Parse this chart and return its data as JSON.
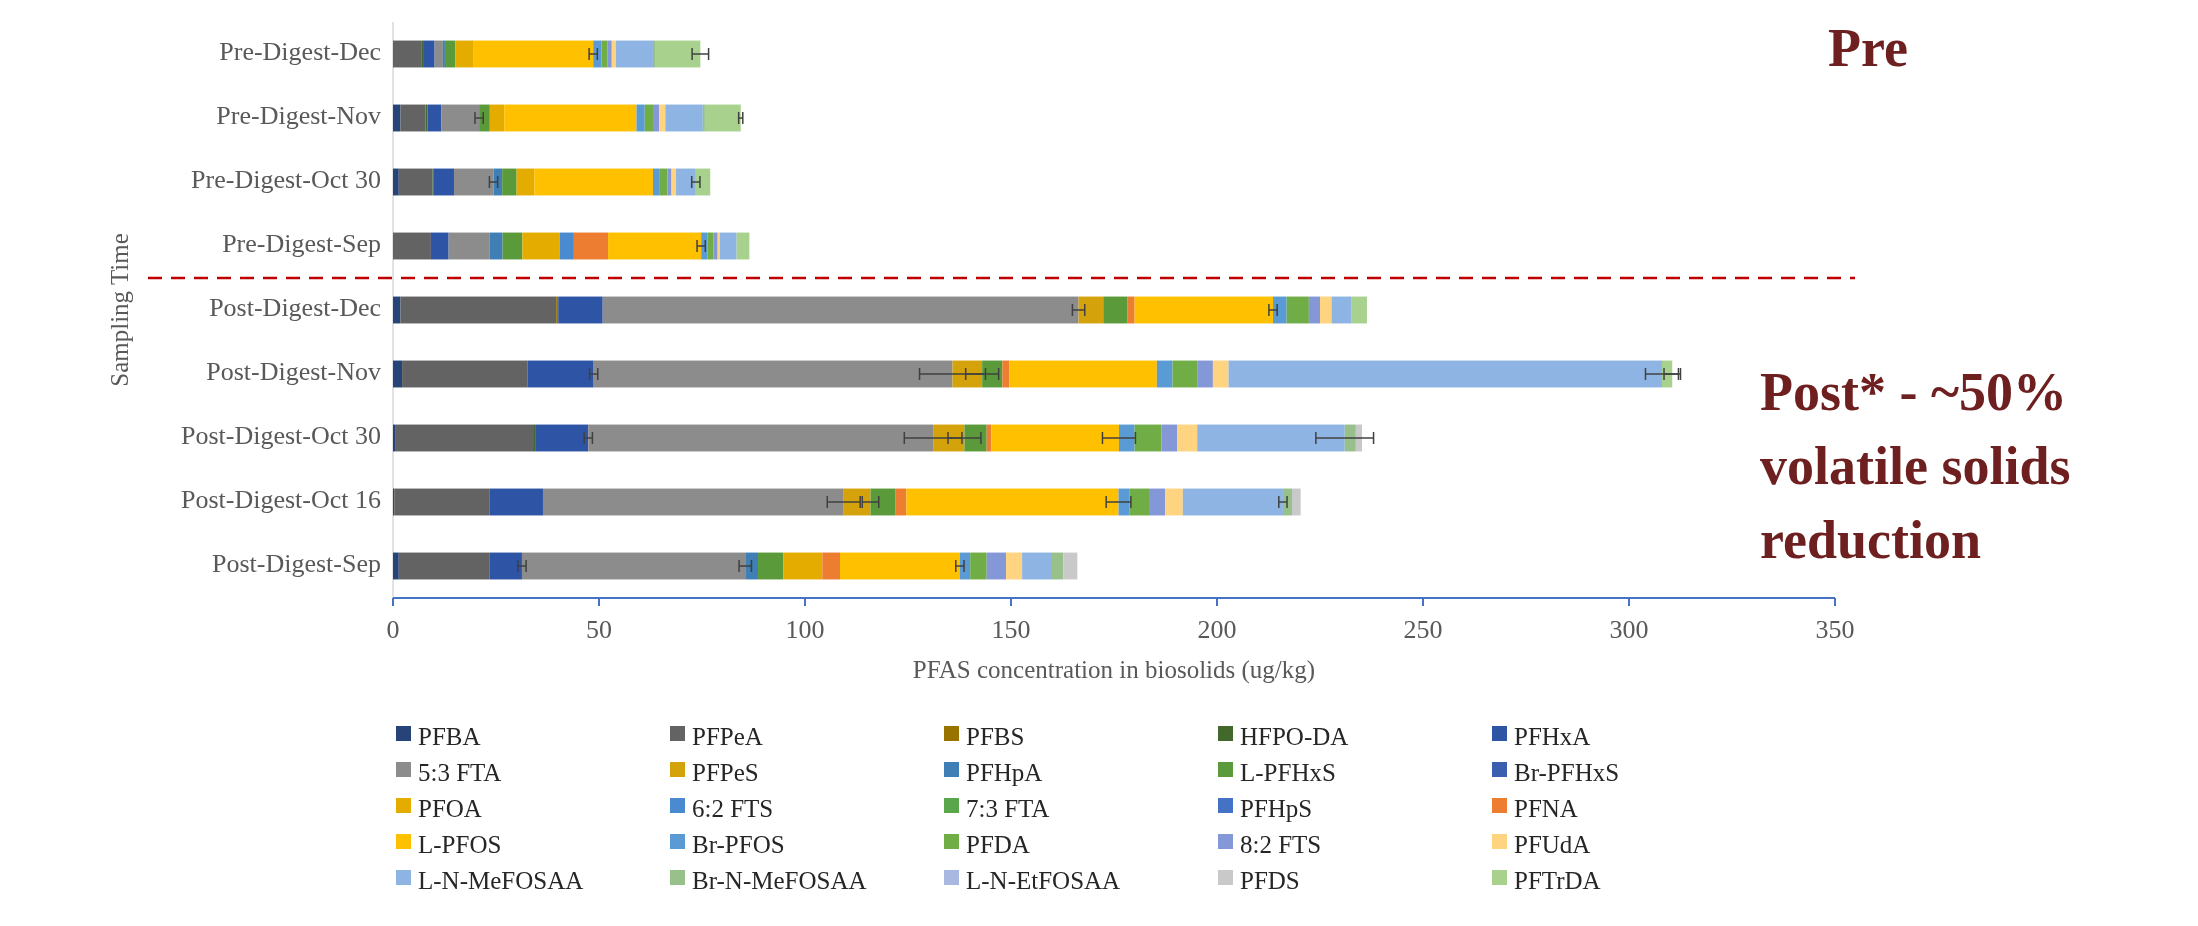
{
  "chart_data": {
    "type": "bar",
    "orientation": "horizontal",
    "stacked": true,
    "xlabel": "PFAS concentration in biosolids (ug/kg)",
    "ylabel": "Sampling Time",
    "categories": [
      "Pre-Digest-Dec",
      "Pre-Digest-Nov",
      "Pre-Digest-Oct 30",
      "Pre-Digest-Sep",
      "Post-Digest-Dec",
      "Post-Digest-Nov",
      "Post-Digest-Oct 30",
      "Post-Digest-Oct 16",
      "Post-Digest-Sep"
    ],
    "xlim": [
      0,
      350
    ],
    "xticks": [
      0,
      50,
      100,
      150,
      200,
      250,
      300,
      350
    ],
    "grid": false,
    "legend": "bottom",
    "ref_lines": [
      {
        "axis": "y",
        "value": "Pre-Digest-Sep",
        "color": "#c00000",
        "line_style": "dashed"
      }
    ],
    "annotations": [
      "Pre",
      "Post* - ~50% volatile solids reduction"
    ],
    "series": [
      {
        "name": "PFBA",
        "color": "#264478",
        "values": [
          0,
          1.8,
          1.4,
          0,
          1.8,
          2.2,
          0.5,
          0.3,
          1.4
        ]
      },
      {
        "name": "PFPeA",
        "color": "#636363",
        "values": [
          7,
          6.1,
          8.2,
          9.2,
          37.8,
          30.5,
          33.5,
          23.2,
          22.1
        ]
      },
      {
        "name": "PFBS",
        "color": "#997300",
        "values": [
          0,
          0,
          0,
          0,
          0.5,
          0,
          0,
          0,
          0
        ]
      },
      {
        "name": "HFPO-DA",
        "color": "#43682b",
        "values": [
          0.3,
          0.5,
          0.3,
          0,
          0,
          0,
          0.5,
          0,
          0
        ]
      },
      {
        "name": "PFHxA",
        "color": "#2e55a5",
        "values": [
          2.8,
          3.3,
          4.9,
          4.3,
          10.8,
          16,
          12.9,
          12.9,
          7.8
        ],
        "errors": [
          null,
          null,
          null,
          null,
          null,
          1,
          1,
          null,
          1
        ]
      },
      {
        "name": "5:3 FTA",
        "color": "#8c8c8c",
        "values": [
          2,
          9.2,
          9.6,
          10,
          115.5,
          87.1,
          83.7,
          73,
          54.2
        ],
        "errors": [
          null,
          1,
          1,
          null,
          1.5,
          8,
          7,
          4,
          1.5
        ]
      },
      {
        "name": "PFPeS",
        "color": "#d4a20a",
        "values": [
          0,
          0,
          0,
          0,
          6,
          7.2,
          7.6,
          6.5,
          0
        ],
        "errors": [
          null,
          null,
          null,
          null,
          null,
          4,
          4,
          2,
          null
        ]
      },
      {
        "name": "PFHpA",
        "color": "#3f7fb5",
        "values": [
          0.5,
          0,
          2.1,
          3.1,
          0,
          0,
          0,
          0,
          3.1
        ]
      },
      {
        "name": "L-PFHxS",
        "color": "#5b9a3a",
        "values": [
          2.5,
          2.6,
          3.5,
          4.8,
          5.9,
          4.9,
          5.4,
          6.1,
          6.1
        ]
      },
      {
        "name": "Br-PFHxS",
        "color": "#3a5fb0",
        "values": [
          0,
          0,
          0,
          0,
          0,
          0,
          0,
          0,
          0
        ]
      },
      {
        "name": "PFOA",
        "color": "#e5ac00",
        "values": [
          4.5,
          3.5,
          4.3,
          9.1,
          0,
          0,
          0,
          0,
          9.5
        ]
      },
      {
        "name": "6:2 FTS",
        "color": "#4a8ad0",
        "values": [
          0,
          0,
          0,
          3.4,
          0,
          0,
          0,
          0,
          0
        ]
      },
      {
        "name": "7:3 FTA",
        "color": "#5aa64a",
        "values": [
          0,
          0,
          0,
          0,
          0,
          0,
          0,
          0,
          0
        ]
      },
      {
        "name": "PFHpS",
        "color": "#4472c4",
        "values": [
          0,
          0,
          0,
          0,
          0,
          0,
          0,
          0,
          0
        ]
      },
      {
        "name": "PFNA",
        "color": "#ed7d31",
        "values": [
          0,
          0,
          0,
          8.3,
          1.7,
          1.7,
          1.1,
          2.6,
          4.3
        ]
      },
      {
        "name": "L-PFOS",
        "color": "#ffc000",
        "values": [
          29,
          32.1,
          28.8,
          22.6,
          33.6,
          35.8,
          31,
          51.5,
          29.1
        ],
        "errors": [
          1,
          null,
          null,
          1,
          1,
          null,
          4,
          3,
          1
        ]
      },
      {
        "name": "Br-PFOS",
        "color": "#5b9bd5",
        "values": [
          2,
          2,
          1.5,
          1.5,
          3.3,
          3.8,
          3.8,
          2.6,
          2.5
        ]
      },
      {
        "name": "PFDA",
        "color": "#70ad47",
        "values": [
          1.5,
          2,
          2,
          1.5,
          5.4,
          6,
          6.5,
          4.8,
          4
        ]
      },
      {
        "name": "8:2 FTS",
        "color": "#8497d6",
        "values": [
          1,
          1.5,
          1,
          1,
          2.7,
          3.8,
          3.8,
          3.9,
          4.7
        ]
      },
      {
        "name": "PFUdA",
        "color": "#ffd480",
        "values": [
          1,
          1.5,
          1.1,
          0.5,
          2.8,
          3.8,
          4.9,
          4.3,
          3.9
        ]
      },
      {
        "name": "L-N-MeFOSAA",
        "color": "#8eb4e3",
        "values": [
          9,
          9.1,
          4.8,
          4.1,
          4.9,
          105.2,
          35.8,
          24.3,
          7
        ],
        "errors": [
          null,
          null,
          1,
          null,
          null,
          4,
          7,
          1,
          null
        ]
      },
      {
        "name": "Br-N-MeFOSAA",
        "color": "#98c08a",
        "values": [
          0.5,
          0.5,
          0,
          0,
          0,
          0,
          2.7,
          2.2,
          3
        ]
      },
      {
        "name": "L-N-EtFOSAA",
        "color": "#a9b8e0",
        "values": [
          0,
          0,
          0,
          0,
          0,
          0,
          0,
          0,
          0
        ]
      },
      {
        "name": "PFDS",
        "color": "#c9c9c9",
        "values": [
          0,
          0,
          0,
          0,
          0,
          0,
          1.5,
          2.1,
          3.4
        ]
      },
      {
        "name": "PFTrDA",
        "color": "#a9d18e",
        "values": [
          11,
          8.7,
          3.5,
          3.1,
          3.7,
          2.5,
          0,
          0,
          0
        ],
        "errors": [
          2,
          0.5,
          null,
          null,
          null,
          2,
          null,
          null,
          null
        ]
      }
    ]
  }
}
